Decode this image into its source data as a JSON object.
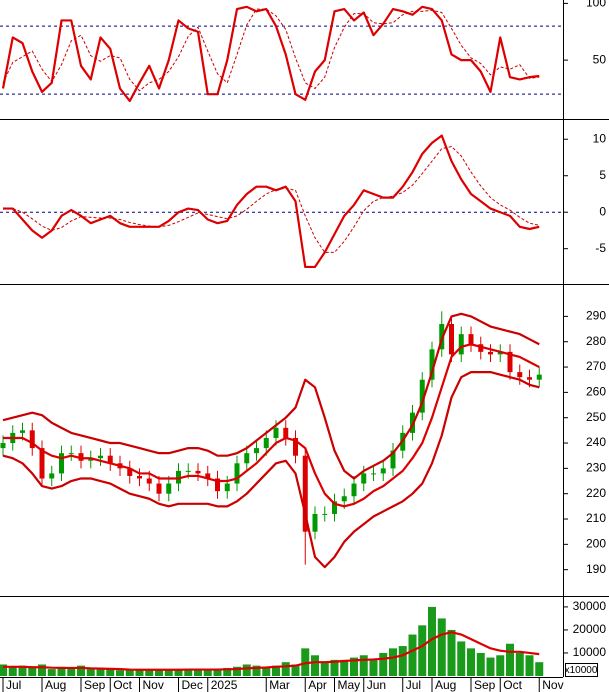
{
  "chart_data": [
    {
      "type": "line",
      "ylim": [
        -1,
        103
      ],
      "yticks": [
        50,
        100
      ],
      "levels": [
        20,
        80
      ],
      "level_color": "#000080",
      "series": [
        {
          "color": "#dd0000",
          "values": [
            25,
            70,
            65,
            40,
            22,
            30,
            85,
            85,
            45,
            33,
            70,
            60,
            25,
            14,
            30,
            45,
            25,
            50,
            85,
            78,
            75,
            20,
            20,
            50,
            95,
            97,
            93,
            95,
            80,
            55,
            20,
            15,
            40,
            50,
            93,
            95,
            85,
            92,
            72,
            82,
            95,
            93,
            90,
            97,
            95,
            85,
            55,
            50,
            50,
            40,
            22,
            70,
            35,
            33,
            35,
            36
          ]
        },
        {
          "color": "#cc0000",
          "dashed": true,
          "values": [
            30,
            48,
            53,
            58,
            42,
            31,
            46,
            67,
            72,
            54,
            49,
            54,
            52,
            33,
            23,
            30,
            33,
            40,
            53,
            71,
            79,
            58,
            38,
            30,
            55,
            81,
            95,
            95,
            89,
            77,
            52,
            30,
            25,
            35,
            61,
            79,
            91,
            91,
            83,
            82,
            83,
            90,
            93,
            93,
            94,
            92,
            78,
            63,
            52,
            47,
            37,
            44,
            42,
            46,
            34,
            35
          ]
        }
      ]
    },
    {
      "type": "line",
      "ylim": [
        -9.7,
        12.5
      ],
      "yticks": [
        -5,
        0,
        5,
        10
      ],
      "levels": [
        0
      ],
      "level_color": "#000080",
      "series": [
        {
          "color": "#dd0000",
          "values": [
            0.5,
            0.5,
            -1,
            -2.5,
            -3.5,
            -2.5,
            -0.5,
            0.3,
            -0.5,
            -1.5,
            -1,
            -0.5,
            -1.5,
            -2,
            -2,
            -2,
            -2,
            -1.2,
            0,
            0.5,
            0.3,
            -1,
            -1.5,
            -1.2,
            1,
            2.5,
            3.5,
            3.5,
            3,
            3.5,
            1.5,
            -7.5,
            -7.5,
            -5.5,
            -3,
            -0.5,
            1,
            3,
            2.5,
            2,
            2,
            3.5,
            5.5,
            8,
            9.5,
            10.5,
            7,
            4.5,
            2.5,
            1.5,
            0.5,
            0,
            -0.5,
            -2,
            -2.3,
            -2
          ]
        },
        {
          "color": "#cc0000",
          "dashed": true,
          "values": [
            0.6,
            0.5,
            0,
            -0.9,
            -1.9,
            -2.5,
            -2.1,
            -1.2,
            -0.6,
            -0.7,
            -0.8,
            -0.8,
            -1.0,
            -1.4,
            -1.7,
            -1.9,
            -2.0,
            -1.8,
            -1.3,
            -0.7,
            -0.1,
            -0.3,
            -0.6,
            -0.9,
            -0.5,
            0.4,
            1.5,
            2.5,
            3.1,
            3.3,
            3.0,
            -0.5,
            -3.5,
            -5.5,
            -5.5,
            -4.0,
            -2.0,
            0.2,
            1.5,
            2.0,
            2.2,
            2.7,
            3.7,
            5.3,
            7.0,
            8.7,
            9.0,
            7.7,
            5.5,
            3.6,
            2.0,
            1.0,
            0.3,
            -0.7,
            -1.5,
            -1.8
          ]
        }
      ]
    },
    {
      "type": "candlestick",
      "ylim": [
        180,
        302
      ],
      "yticks": [
        190,
        200,
        210,
        220,
        230,
        240,
        250,
        260,
        270,
        280,
        290
      ],
      "up_color": "#009900",
      "down_color": "#dd0000",
      "open": [
        238,
        240,
        244,
        245,
        238,
        226,
        228,
        236,
        236,
        233,
        234,
        235,
        232,
        230,
        227,
        226,
        224,
        220,
        224,
        229,
        229,
        228,
        226,
        221,
        224,
        232,
        236,
        238,
        242,
        246,
        242,
        235,
        205,
        212,
        212,
        217,
        219,
        224,
        228,
        228,
        230,
        237,
        244,
        252,
        265,
        277,
        287,
        275,
        283,
        279,
        276,
        275,
        276,
        268,
        266,
        265
      ],
      "high": [
        243,
        247,
        248,
        248,
        241,
        231,
        239,
        239,
        239,
        237,
        238,
        238,
        235,
        233,
        230,
        229,
        227,
        227,
        232,
        232,
        232,
        231,
        229,
        227,
        235,
        239,
        241,
        245,
        249,
        249,
        245,
        238,
        215,
        215,
        220,
        222,
        227,
        231,
        231,
        233,
        240,
        247,
        255,
        268,
        280,
        292,
        290,
        286,
        286,
        282,
        279,
        279,
        279,
        271,
        269,
        270
      ],
      "low": [
        235,
        237,
        241,
        235,
        223,
        223,
        225,
        233,
        230,
        230,
        231,
        229,
        227,
        224,
        223,
        221,
        217,
        217,
        221,
        226,
        225,
        223,
        218,
        218,
        221,
        229,
        233,
        235,
        239,
        239,
        232,
        192,
        202,
        209,
        209,
        214,
        216,
        221,
        225,
        225,
        227,
        234,
        241,
        249,
        262,
        274,
        272,
        272,
        276,
        273,
        272,
        272,
        265,
        263,
        262,
        262
      ],
      "close": [
        240,
        244,
        245,
        238,
        226,
        228,
        236,
        236,
        233,
        234,
        235,
        232,
        230,
        227,
        226,
        224,
        220,
        224,
        229,
        229,
        228,
        226,
        221,
        224,
        232,
        236,
        238,
        242,
        246,
        242,
        235,
        205,
        212,
        212,
        217,
        219,
        224,
        228,
        228,
        230,
        237,
        244,
        252,
        265,
        277,
        287,
        275,
        283,
        279,
        276,
        275,
        276,
        268,
        266,
        265,
        267
      ],
      "series": [
        {
          "color": "#cc0000",
          "values": [
            249,
            250,
            251,
            252,
            251,
            248,
            246,
            244,
            243,
            242,
            241,
            240,
            240,
            239,
            238,
            237,
            236,
            236,
            237,
            238,
            238,
            237,
            235,
            235,
            236,
            238,
            241,
            244,
            247,
            250,
            254,
            265,
            262,
            250,
            237,
            229,
            226,
            229,
            231,
            233,
            236,
            241,
            247,
            256,
            268,
            281,
            290,
            291,
            290,
            288,
            286,
            285,
            284,
            283,
            281,
            279
          ]
        },
        {
          "color": "#dd0000",
          "values": [
            242,
            242,
            242,
            240,
            237,
            235,
            234,
            235,
            234,
            234,
            233,
            232,
            231,
            230,
            228,
            228,
            226,
            226,
            226,
            227,
            227,
            226,
            225,
            225,
            226,
            229,
            232,
            236,
            240,
            242,
            241,
            238,
            228,
            220,
            216,
            215,
            216,
            218,
            221,
            223,
            226,
            229,
            234,
            240,
            250,
            262,
            274,
            278,
            279,
            278,
            277,
            276,
            275,
            274,
            272,
            270
          ]
        },
        {
          "color": "#cc0000",
          "values": [
            235,
            234,
            232,
            228,
            223,
            222,
            223,
            225,
            226,
            226,
            225,
            224,
            222,
            220,
            219,
            218,
            216,
            215,
            216,
            216,
            216,
            216,
            215,
            215,
            217,
            220,
            224,
            228,
            232,
            233,
            228,
            212,
            195,
            191,
            195,
            201,
            205,
            208,
            211,
            213,
            215,
            217,
            220,
            224,
            232,
            243,
            258,
            266,
            268,
            268,
            268,
            267,
            266,
            265,
            263,
            262
          ]
        }
      ]
    },
    {
      "type": "bar",
      "ylim": [
        0,
        34300
      ],
      "yticks": [
        10000,
        20000,
        30000
      ],
      "color": "#1a9a1a",
      "unit_label": "x10000",
      "categories": [
        "Jul",
        null,
        null,
        null,
        "Aug",
        null,
        null,
        null,
        "Sep",
        null,
        null,
        "Oct",
        null,
        null,
        "Nov",
        null,
        null,
        null,
        "Dec",
        null,
        null,
        "2025",
        null,
        null,
        null,
        null,
        null,
        "Mar",
        null,
        null,
        null,
        "Apr",
        null,
        null,
        "May",
        null,
        null,
        "Jun",
        null,
        null,
        null,
        "Jul",
        null,
        null,
        "Aug",
        null,
        null,
        null,
        "Sep",
        null,
        null,
        "Oct",
        null,
        null,
        null,
        "Nov"
      ],
      "values": [
        5000,
        4000,
        4500,
        3500,
        5000,
        3000,
        4000,
        3500,
        4500,
        3000,
        3000,
        3000,
        2500,
        2500,
        3000,
        2500,
        3000,
        2500,
        3000,
        3000,
        3000,
        2500,
        2500,
        3500,
        4000,
        5000,
        4500,
        4000,
        4500,
        6000,
        5000,
        12000,
        9000,
        6000,
        7000,
        7000,
        8000,
        9000,
        7000,
        10000,
        12000,
        13000,
        18000,
        22000,
        30000,
        25000,
        20000,
        15000,
        12000,
        10000,
        8000,
        9000,
        14000,
        10000,
        9000,
        6000
      ],
      "series": [
        {
          "color": "#dd0000",
          "values": [
            4000,
            4000,
            4000,
            3800,
            3800,
            3600,
            3500,
            3500,
            3500,
            3300,
            3200,
            3100,
            3000,
            2800,
            2700,
            2700,
            2700,
            2700,
            2700,
            2800,
            2800,
            2800,
            2800,
            2900,
            3000,
            3300,
            3500,
            3700,
            4000,
            4200,
            4500,
            5500,
            6000,
            6000,
            6200,
            6500,
            6800,
            7000,
            7200,
            7500,
            8000,
            9000,
            11000,
            13000,
            16000,
            18000,
            19000,
            18000,
            16000,
            14000,
            12000,
            11000,
            10500,
            10500,
            10000,
            9500
          ]
        }
      ]
    }
  ]
}
